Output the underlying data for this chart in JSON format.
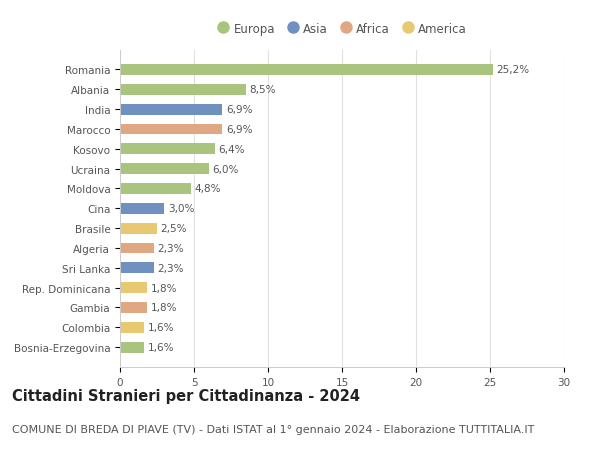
{
  "countries": [
    "Romania",
    "Albania",
    "India",
    "Marocco",
    "Kosovo",
    "Ucraina",
    "Moldova",
    "Cina",
    "Brasile",
    "Algeria",
    "Sri Lanka",
    "Rep. Dominicana",
    "Gambia",
    "Colombia",
    "Bosnia-Erzegovina"
  ],
  "values": [
    25.2,
    8.5,
    6.9,
    6.9,
    6.4,
    6.0,
    4.8,
    3.0,
    2.5,
    2.3,
    2.3,
    1.8,
    1.8,
    1.6,
    1.6
  ],
  "labels": [
    "25,2%",
    "8,5%",
    "6,9%",
    "6,9%",
    "6,4%",
    "6,0%",
    "4,8%",
    "3,0%",
    "2,5%",
    "2,3%",
    "2,3%",
    "1,8%",
    "1,8%",
    "1,6%",
    "1,6%"
  ],
  "continents": [
    "Europa",
    "Europa",
    "Asia",
    "Africa",
    "Europa",
    "Europa",
    "Europa",
    "Asia",
    "America",
    "Africa",
    "Asia",
    "America",
    "Africa",
    "America",
    "Europa"
  ],
  "colors": {
    "Europa": "#a8c47f",
    "Asia": "#7090c0",
    "Africa": "#e0a882",
    "America": "#e8c870"
  },
  "legend_order": [
    "Europa",
    "Asia",
    "Africa",
    "America"
  ],
  "xlim": [
    0,
    30
  ],
  "xticks": [
    0,
    5,
    10,
    15,
    20,
    25,
    30
  ],
  "title": "Cittadini Stranieri per Cittadinanza - 2024",
  "subtitle": "COMUNE DI BREDA DI PIAVE (TV) - Dati ISTAT al 1° gennaio 2024 - Elaborazione TUTTITALIA.IT",
  "background_color": "#ffffff",
  "bar_height": 0.55,
  "title_fontsize": 10.5,
  "subtitle_fontsize": 8,
  "label_fontsize": 7.5,
  "tick_fontsize": 7.5,
  "legend_fontsize": 8.5
}
